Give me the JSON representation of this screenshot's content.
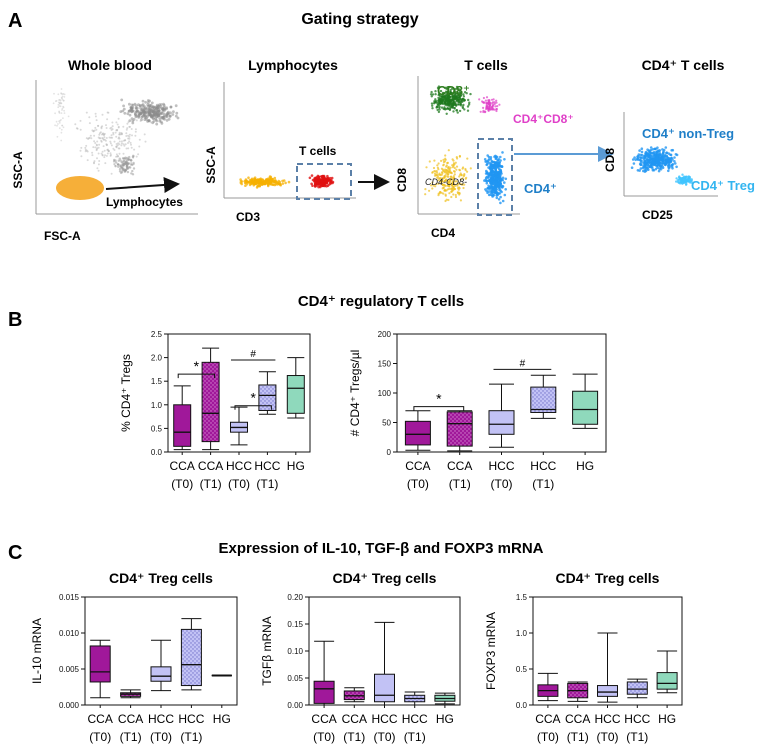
{
  "panel_a": {
    "letter": "A",
    "title": "Gating strategy",
    "whole_blood": {
      "title": "Whole blood",
      "xlabel": "FSC-A",
      "ylabel": "SSC-A",
      "gate_label": "Lymphocytes"
    },
    "lymphocytes": {
      "title": "Lymphocytes",
      "xlabel": "CD3",
      "ylabel": "SSC-A",
      "gate_label": "T cells"
    },
    "t_cells": {
      "title": "T cells",
      "xlabel": "CD4",
      "ylabel": "CD8",
      "cd8_label": "CD8⁺",
      "dp_label": "CD4⁺CD8⁺",
      "dn_label": "CD4-CD8-",
      "cd4_label": "CD4⁺"
    },
    "cd4_t_cells": {
      "title": "CD4⁺ T cells",
      "xlabel": "CD25",
      "ylabel": "CD8",
      "nontreg_label": "CD4⁺ non-Treg",
      "treg_label": "CD4⁺ Treg"
    }
  },
  "panel_b": {
    "letter": "B",
    "title": "CD4⁺ regulatory T cells"
  },
  "panel_c": {
    "letter": "C",
    "title": "Expression of IL-10, TGF-β and FOXP3 mRNA"
  },
  "colors": {
    "cca_t0": "#a0189a",
    "cca_t1": "#a0189a",
    "hcc_t0": "#c2c2f5",
    "hcc_t1": "#c2c2f5",
    "hg": "#8fd9bc",
    "gate_box": "#5b80a8",
    "arrow_blue": "#5b9bd5",
    "cd8_green": "#2e7d1e",
    "pink": "#e040c8",
    "cd4_blue": "#1f7fc8",
    "treg_lightblue": "#33b5f0"
  },
  "chart_data": [
    {
      "id": "b1",
      "type": "box",
      "title": "",
      "xlabel": "",
      "ylabel": "% CD4⁺ Tregs",
      "ylim": [
        0,
        2.5
      ],
      "yticks": [
        "0.0",
        "0.5",
        "1.0",
        "1.5",
        "2.0",
        "2.5"
      ],
      "categories": [
        [
          "CCA",
          "(T0)"
        ],
        [
          "CCA",
          "(T1)"
        ],
        [
          "HCC",
          "(T0)"
        ],
        [
          "HCC",
          "(T1)"
        ],
        [
          "HG",
          ""
        ]
      ],
      "series": [
        {
          "group": "CCA (T0)",
          "min": 0.05,
          "q1": 0.12,
          "median": 0.42,
          "q3": 1.0,
          "max": 1.4,
          "fill": "cca_t0",
          "hatch": false
        },
        {
          "group": "CCA (T1)",
          "min": 0.05,
          "q1": 0.22,
          "median": 0.82,
          "q3": 1.9,
          "max": 2.2,
          "fill": "cca_t1",
          "hatch": true
        },
        {
          "group": "HCC (T0)",
          "min": 0.15,
          "q1": 0.42,
          "median": 0.52,
          "q3": 0.63,
          "max": 0.95,
          "fill": "hcc_t0",
          "hatch": false
        },
        {
          "group": "HCC (T1)",
          "min": 0.8,
          "q1": 0.88,
          "median": 1.2,
          "q3": 1.42,
          "max": 1.7,
          "fill": "hcc_t1",
          "hatch": true
        },
        {
          "group": "HG",
          "min": 0.72,
          "q1": 0.82,
          "median": 1.35,
          "q3": 1.62,
          "max": 2.0,
          "fill": "hg",
          "hatch": false
        }
      ],
      "annotations": [
        {
          "text": "*",
          "from": 0,
          "to": 1,
          "y": 1.65,
          "type": "bracket"
        },
        {
          "text": "#",
          "from": 2,
          "to": 3,
          "y": 1.95,
          "type": "line"
        },
        {
          "text": "*",
          "from": 2,
          "to": 3,
          "y": 0.98,
          "type": "bracket"
        }
      ]
    },
    {
      "id": "b2",
      "type": "box",
      "title": "",
      "xlabel": "",
      "ylabel": "# CD4⁺ Tregs/µl",
      "ylim": [
        0,
        200
      ],
      "yticks": [
        "0",
        "50",
        "100",
        "150",
        "200"
      ],
      "categories": [
        [
          "CCA",
          "(T0)"
        ],
        [
          "CCA",
          "(T1)"
        ],
        [
          "HCC",
          "(T0)"
        ],
        [
          "HCC",
          "(T1)"
        ],
        [
          "HG",
          ""
        ]
      ],
      "series": [
        {
          "group": "CCA (T0)",
          "min": 3,
          "q1": 12,
          "median": 30,
          "q3": 52,
          "max": 70,
          "fill": "cca_t0",
          "hatch": false
        },
        {
          "group": "CCA (T1)",
          "min": 2,
          "q1": 10,
          "median": 48,
          "q3": 68,
          "max": 70,
          "fill": "cca_t1",
          "hatch": true
        },
        {
          "group": "HCC (T0)",
          "min": 8,
          "q1": 30,
          "median": 47,
          "q3": 70,
          "max": 115,
          "fill": "hcc_t0",
          "hatch": false
        },
        {
          "group": "HCC (T1)",
          "min": 57,
          "q1": 67,
          "median": 72,
          "q3": 110,
          "max": 130,
          "fill": "hcc_t1",
          "hatch": true
        },
        {
          "group": "HG",
          "min": 40,
          "q1": 47,
          "median": 72,
          "q3": 103,
          "max": 132,
          "fill": "hg",
          "hatch": false
        }
      ],
      "annotations": [
        {
          "text": "*",
          "from": 0,
          "to": 1,
          "y": 77,
          "type": "bracket"
        },
        {
          "text": "#",
          "from": 2,
          "to": 3,
          "y": 140,
          "type": "line"
        }
      ]
    },
    {
      "id": "c1",
      "type": "box",
      "title": "CD4⁺ Treg cells",
      "xlabel": "",
      "ylabel": "IL-10 mRNA",
      "ylim": [
        0,
        0.015
      ],
      "yticks": [
        "0.000",
        "0.005",
        "0.010",
        "0.015"
      ],
      "categories": [
        [
          "CCA",
          "(T0)"
        ],
        [
          "CCA",
          "(T1)"
        ],
        [
          "HCC",
          "(T0)"
        ],
        [
          "HCC",
          "(T1)"
        ],
        [
          "HG",
          ""
        ]
      ],
      "series": [
        {
          "group": "CCA (T0)",
          "min": 0.001,
          "q1": 0.0032,
          "median": 0.0046,
          "q3": 0.0082,
          "max": 0.009,
          "fill": "cca_t0",
          "hatch": false
        },
        {
          "group": "CCA (T1)",
          "min": 0.001,
          "q1": 0.0012,
          "median": 0.0015,
          "q3": 0.0017,
          "max": 0.0021,
          "fill": "cca_t1",
          "hatch": true
        },
        {
          "group": "HCC (T0)",
          "min": 0.002,
          "q1": 0.0033,
          "median": 0.004,
          "q3": 0.0053,
          "max": 0.009,
          "fill": "hcc_t0",
          "hatch": false
        },
        {
          "group": "HCC (T1)",
          "min": 0.0021,
          "q1": 0.0027,
          "median": 0.0056,
          "q3": 0.0105,
          "max": 0.012,
          "fill": "hcc_t1",
          "hatch": true
        },
        {
          "group": "HG",
          "min": 0.0041,
          "q1": 0.0041,
          "median": 0.0041,
          "q3": 0.0041,
          "max": 0.0041,
          "fill": "hg",
          "hatch": false
        }
      ],
      "annotations": []
    },
    {
      "id": "c2",
      "type": "box",
      "title": "CD4⁺ Treg cells",
      "xlabel": "",
      "ylabel": "TGFβ mRNA",
      "ylim": [
        0,
        0.2
      ],
      "yticks": [
        "0.00",
        "0.05",
        "0.10",
        "0.15",
        "0.20"
      ],
      "categories": [
        [
          "CCA",
          "(T0)"
        ],
        [
          "CCA",
          "(T1)"
        ],
        [
          "HCC",
          "(T0)"
        ],
        [
          "HCC",
          "(T1)"
        ],
        [
          "HG",
          ""
        ]
      ],
      "series": [
        {
          "group": "CCA (T0)",
          "min": 0.0,
          "q1": 0.003,
          "median": 0.03,
          "q3": 0.044,
          "max": 0.118,
          "fill": "cca_t0",
          "hatch": false
        },
        {
          "group": "CCA (T1)",
          "min": 0.006,
          "q1": 0.01,
          "median": 0.017,
          "q3": 0.026,
          "max": 0.032,
          "fill": "cca_t1",
          "hatch": true
        },
        {
          "group": "HCC (T0)",
          "min": 0.0,
          "q1": 0.006,
          "median": 0.018,
          "q3": 0.057,
          "max": 0.153,
          "fill": "hcc_t0",
          "hatch": false
        },
        {
          "group": "HCC (T1)",
          "min": 0.0,
          "q1": 0.006,
          "median": 0.012,
          "q3": 0.018,
          "max": 0.024,
          "fill": "hcc_t1",
          "hatch": true
        },
        {
          "group": "HG",
          "min": 0.002,
          "q1": 0.007,
          "median": 0.012,
          "q3": 0.018,
          "max": 0.022,
          "fill": "hg",
          "hatch": false
        }
      ],
      "annotations": []
    },
    {
      "id": "c3",
      "type": "box",
      "title": "CD4⁺ Treg cells",
      "xlabel": "",
      "ylabel": "FOXP3 mRNA",
      "ylim": [
        0,
        1.5
      ],
      "yticks": [
        "0.0",
        "0.5",
        "1.0",
        "1.5"
      ],
      "categories": [
        [
          "CCA",
          "(T0)"
        ],
        [
          "CCA",
          "(T1)"
        ],
        [
          "HCC",
          "(T0)"
        ],
        [
          "HCC",
          "(T1)"
        ],
        [
          "HG",
          ""
        ]
      ],
      "series": [
        {
          "group": "CCA (T0)",
          "min": 0.06,
          "q1": 0.12,
          "median": 0.2,
          "q3": 0.28,
          "max": 0.44,
          "fill": "cca_t0",
          "hatch": false
        },
        {
          "group": "CCA (T1)",
          "min": 0.05,
          "q1": 0.1,
          "median": 0.2,
          "q3": 0.3,
          "max": 0.32,
          "fill": "cca_t1",
          "hatch": true
        },
        {
          "group": "HCC (T0)",
          "min": 0.04,
          "q1": 0.12,
          "median": 0.18,
          "q3": 0.27,
          "max": 1.0,
          "fill": "hcc_t0",
          "hatch": false
        },
        {
          "group": "HCC (T1)",
          "min": 0.1,
          "q1": 0.15,
          "median": 0.22,
          "q3": 0.32,
          "max": 0.36,
          "fill": "hcc_t1",
          "hatch": true
        },
        {
          "group": "HG",
          "min": 0.17,
          "q1": 0.22,
          "median": 0.3,
          "q3": 0.45,
          "max": 0.75,
          "fill": "hg",
          "hatch": false
        }
      ],
      "annotations": []
    }
  ]
}
